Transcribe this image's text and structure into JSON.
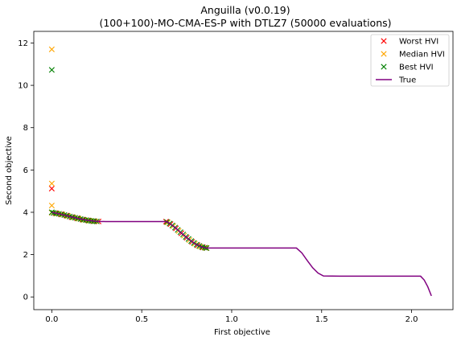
{
  "chart_data": {
    "type": "scatter",
    "title": "Anguilla (v0.0.19)",
    "subtitle": "(100+100)-MO-CMA-ES-P with DTLZ7 (50000 evaluations)",
    "xlabel": "First objective",
    "ylabel": "Second objective",
    "xlim": [
      -0.1,
      2.23
    ],
    "ylim": [
      -0.6,
      12.55
    ],
    "xticks": [
      "0.0",
      "0.5",
      "1.0",
      "1.5",
      "2.0"
    ],
    "yticks": [
      "0",
      "2",
      "4",
      "6",
      "8",
      "10",
      "12"
    ],
    "legend_position": "top-right",
    "series": [
      {
        "name": "Worst HVI",
        "marker": "x",
        "color": "#ff0000",
        "points": [
          [
            0.0,
            5.12
          ],
          [
            0.0,
            3.99
          ],
          [
            0.02,
            3.96
          ],
          [
            0.05,
            3.91
          ],
          [
            0.08,
            3.85
          ],
          [
            0.11,
            3.77
          ],
          [
            0.14,
            3.72
          ],
          [
            0.17,
            3.66
          ],
          [
            0.2,
            3.62
          ],
          [
            0.23,
            3.58
          ],
          [
            0.26,
            3.57
          ],
          [
            0.635,
            3.56
          ],
          [
            0.66,
            3.44
          ],
          [
            0.69,
            3.24
          ],
          [
            0.72,
            3.01
          ],
          [
            0.75,
            2.8
          ],
          [
            0.78,
            2.6
          ],
          [
            0.81,
            2.44
          ],
          [
            0.84,
            2.34
          ],
          [
            0.86,
            2.31
          ]
        ]
      },
      {
        "name": "Median HVI",
        "marker": "x",
        "color": "#ffa500",
        "points": [
          [
            0.0,
            11.7
          ],
          [
            0.0,
            5.36
          ],
          [
            0.0,
            4.32
          ],
          [
            0.0,
            3.98
          ],
          [
            0.03,
            3.94
          ],
          [
            0.06,
            3.89
          ],
          [
            0.09,
            3.82
          ],
          [
            0.12,
            3.76
          ],
          [
            0.15,
            3.7
          ],
          [
            0.18,
            3.64
          ],
          [
            0.21,
            3.6
          ],
          [
            0.24,
            3.58
          ],
          [
            0.645,
            3.52
          ],
          [
            0.675,
            3.35
          ],
          [
            0.705,
            3.12
          ],
          [
            0.735,
            2.9
          ],
          [
            0.765,
            2.69
          ],
          [
            0.795,
            2.52
          ],
          [
            0.825,
            2.38
          ],
          [
            0.855,
            2.32
          ]
        ]
      },
      {
        "name": "Best HVI",
        "marker": "x",
        "color": "#008000",
        "points": [
          [
            0.0,
            10.73
          ],
          [
            0.0,
            4.0
          ],
          [
            0.01,
            3.97
          ],
          [
            0.025,
            3.95
          ],
          [
            0.04,
            3.93
          ],
          [
            0.055,
            3.9
          ],
          [
            0.07,
            3.87
          ],
          [
            0.085,
            3.84
          ],
          [
            0.1,
            3.8
          ],
          [
            0.115,
            3.77
          ],
          [
            0.13,
            3.74
          ],
          [
            0.145,
            3.71
          ],
          [
            0.16,
            3.68
          ],
          [
            0.175,
            3.65
          ],
          [
            0.19,
            3.63
          ],
          [
            0.205,
            3.61
          ],
          [
            0.22,
            3.59
          ],
          [
            0.235,
            3.58
          ],
          [
            0.25,
            3.57
          ],
          [
            0.64,
            3.54
          ],
          [
            0.655,
            3.47
          ],
          [
            0.67,
            3.38
          ],
          [
            0.685,
            3.28
          ],
          [
            0.7,
            3.17
          ],
          [
            0.715,
            3.06
          ],
          [
            0.73,
            2.95
          ],
          [
            0.745,
            2.84
          ],
          [
            0.76,
            2.74
          ],
          [
            0.775,
            2.64
          ],
          [
            0.79,
            2.55
          ],
          [
            0.805,
            2.47
          ],
          [
            0.82,
            2.41
          ],
          [
            0.835,
            2.36
          ],
          [
            0.85,
            2.33
          ],
          [
            0.86,
            2.31
          ]
        ]
      },
      {
        "name": "True",
        "marker": "line",
        "color": "#800080",
        "points": [
          [
            0.0,
            4.0
          ],
          [
            0.05,
            3.91
          ],
          [
            0.1,
            3.8
          ],
          [
            0.15,
            3.7
          ],
          [
            0.2,
            3.62
          ],
          [
            0.25,
            3.57
          ],
          [
            0.3,
            3.56
          ],
          [
            0.4,
            3.56
          ],
          [
            0.5,
            3.56
          ],
          [
            0.6,
            3.56
          ],
          [
            0.64,
            3.56
          ],
          [
            0.68,
            3.32
          ],
          [
            0.72,
            3.02
          ],
          [
            0.76,
            2.73
          ],
          [
            0.8,
            2.49
          ],
          [
            0.84,
            2.34
          ],
          [
            0.86,
            2.31
          ],
          [
            1.0,
            2.31
          ],
          [
            1.2,
            2.31
          ],
          [
            1.36,
            2.31
          ],
          [
            1.39,
            2.08
          ],
          [
            1.42,
            1.72
          ],
          [
            1.45,
            1.38
          ],
          [
            1.48,
            1.13
          ],
          [
            1.51,
            0.99
          ],
          [
            1.6,
            0.98
          ],
          [
            1.8,
            0.98
          ],
          [
            2.0,
            0.98
          ],
          [
            2.05,
            0.98
          ],
          [
            2.07,
            0.8
          ],
          [
            2.09,
            0.48
          ],
          [
            2.11,
            0.05
          ]
        ]
      }
    ]
  }
}
